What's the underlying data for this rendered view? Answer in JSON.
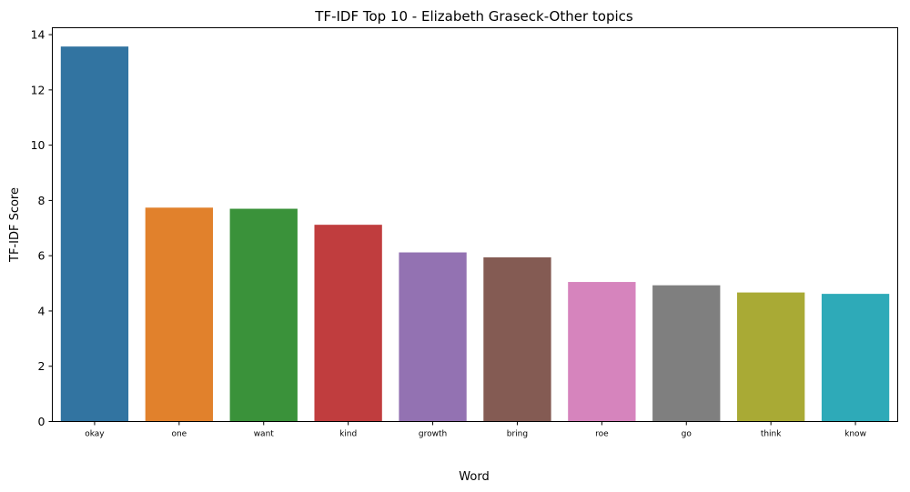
{
  "chart_data": {
    "type": "bar",
    "title": "TF-IDF Top 10 - Elizabeth Graseck-Other topics",
    "xlabel": "Word",
    "ylabel": "TF-IDF Score",
    "categories": [
      "okay",
      "one",
      "want",
      "kind",
      "growth",
      "bring",
      "roe",
      "go",
      "think",
      "know"
    ],
    "values": [
      13.57,
      7.74,
      7.7,
      7.12,
      6.12,
      5.94,
      5.05,
      4.93,
      4.67,
      4.62
    ],
    "colors": [
      "#3274a1",
      "#e1812c",
      "#3a923a",
      "#c03d3e",
      "#9372b2",
      "#845b53",
      "#d684bd",
      "#7f7f7f",
      "#a9aa35",
      "#2eaab8"
    ],
    "ylim": [
      0,
      14.25
    ],
    "yticks": [
      0,
      2,
      4,
      6,
      8,
      10,
      12,
      14
    ],
    "grid": false,
    "legend": "none"
  }
}
